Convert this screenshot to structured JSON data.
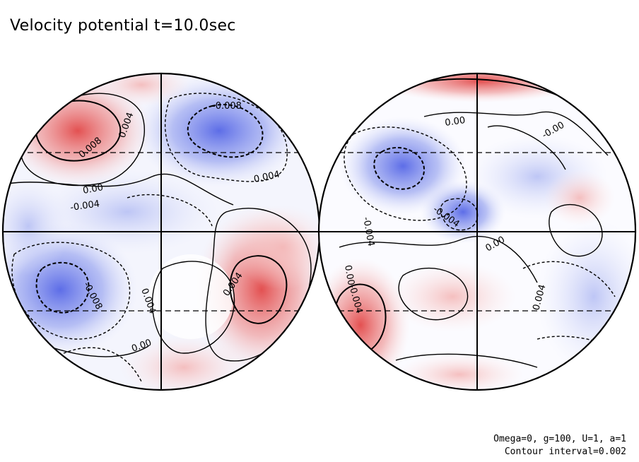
{
  "title": "Velocity potential t=10.0sec",
  "footer": {
    "params": "Omega=0, g=100, U=1, a=1",
    "contour_interval": "Contour interval=0.002"
  },
  "colors": {
    "positive": "#e03a3a",
    "negative": "#3a4ee0",
    "zero": "#ffffff",
    "contour": "#000000"
  },
  "contour_labels": [
    "-0.008",
    "0.004",
    "0.008",
    "0.004",
    "0.00",
    "-0.004",
    "-0.008",
    "0.004",
    "0.004",
    "0.00",
    "0.00",
    "-0.00",
    "-0.004",
    "0.00",
    "0.004",
    "-0.004",
    "0.00",
    "-0.004"
  ]
}
